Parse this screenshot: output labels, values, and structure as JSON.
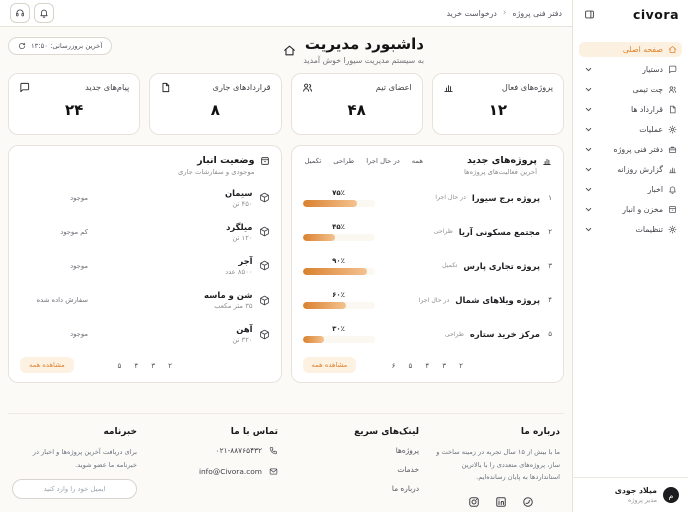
{
  "brand": {
    "logo": "civora"
  },
  "sidebar": {
    "items": [
      {
        "label": "صفحه اصلی",
        "icon": "home-icon",
        "active": true
      },
      {
        "label": "دستیار",
        "icon": "chat-icon"
      },
      {
        "label": "چت تیمی",
        "icon": "users-icon"
      },
      {
        "label": "قرارداد ها",
        "icon": "document-icon"
      },
      {
        "label": "عملیات",
        "icon": "gear-icon"
      },
      {
        "label": "دفتر فنی پروژه",
        "icon": "briefcase-icon"
      },
      {
        "label": "گزارش روزانه",
        "icon": "bar-chart-icon"
      },
      {
        "label": "اخبار",
        "icon": "bell-icon"
      },
      {
        "label": "مخزن و انبار",
        "icon": "box-icon"
      },
      {
        "label": "تنظیمات",
        "icon": "gear-icon"
      }
    ],
    "user": {
      "name": "میلاد جودی",
      "role": "مدیر پروژه",
      "avatar_letter": "م"
    }
  },
  "topbar": {
    "breadcrumb": {
      "first": "دفتر فنی پروژه",
      "separator": "‹",
      "second": "درخواست خرید"
    }
  },
  "header": {
    "title": "داشبورد مدیریت",
    "subtitle": "به سیستم مدیریت سیورا خوش آمدید",
    "last_update": "آخرین بروزرسانی: ۱۳:۵۰"
  },
  "stats": [
    {
      "label": "پروژه‌های فعال",
      "value": "۱۲",
      "icon": "bar-chart-icon"
    },
    {
      "label": "اعضای تیم",
      "value": "۴۸",
      "icon": "users-icon"
    },
    {
      "label": "قراردادهای جاری",
      "value": "۸",
      "icon": "document-icon"
    },
    {
      "label": "پیام‌های جدید",
      "value": "۲۴",
      "icon": "chat-icon"
    }
  ],
  "projects_panel": {
    "title": "پروژه‌های جدید",
    "subtitle": "آخرین فعالیت‌های پروژه‌ها",
    "tabs": [
      "همه",
      "در حال اجرا",
      "طراحی",
      "تکمیل"
    ],
    "rows": [
      {
        "num": "۱",
        "name": "پروژه برج سیورا",
        "status": "در حال اجرا",
        "percent_label": "۷۵٪",
        "percent": 75
      },
      {
        "num": "۲",
        "name": "مجتمع مسکونی آریا",
        "status": "طراحی",
        "percent_label": "۴۵٪",
        "percent": 45
      },
      {
        "num": "۳",
        "name": "پروژه تجاری پارس",
        "status": "تکمیل",
        "percent_label": "۹۰٪",
        "percent": 90
      },
      {
        "num": "۴",
        "name": "پروژه ویلاهای شمال",
        "status": "در حال اجرا",
        "percent_label": "۶۰٪",
        "percent": 60
      },
      {
        "num": "۵",
        "name": "مرکز خرید ستاره",
        "status": "طراحی",
        "percent_label": "۳۰٪",
        "percent": 30
      }
    ],
    "pagination": [
      "۲",
      "۳",
      "۴",
      "۵",
      "۶"
    ],
    "view_all": "مشاهده همه"
  },
  "inventory_panel": {
    "title": "وضعیت انبار",
    "subtitle": "موجودی و سفارشات جاری",
    "rows": [
      {
        "name": "سیمان",
        "qty": "۴۵۰ تن",
        "status": "موجود"
      },
      {
        "name": "میلگرد",
        "qty": "۱۲۰ تن",
        "status": "کم موجود"
      },
      {
        "name": "آجر",
        "qty": "۸۵۰۰ عدد",
        "status": "موجود"
      },
      {
        "name": "شن و ماسه",
        "qty": "۳۵ متر مکعب",
        "status": "سفارش داده شده"
      },
      {
        "name": "آهن",
        "qty": "۳۲۰ تن",
        "status": "موجود"
      }
    ],
    "pagination": [
      "۲",
      "۳",
      "۴",
      "۵"
    ],
    "view_all": "مشاهده همه"
  },
  "footer": {
    "about": {
      "title": "درباره ما",
      "text": "ما با بیش از ۱۵ سال تجربه در زمینه ساخت و ساز، پروژه‌های متعددی را با بالاترین استانداردها به پایان رسانده‌ایم.",
      "social": [
        "instagram-icon",
        "linkedin-icon",
        "twitter-icon"
      ]
    },
    "quick_links": {
      "title": "لینک‌های سریع",
      "links": [
        "پروژه‌ها",
        "خدمات",
        "درباره ما"
      ]
    },
    "contact": {
      "title": "تماس با ما",
      "phone": "۰۲۱-۸۸۷۶۵۴۳۲",
      "email": "info@Civora.com"
    },
    "newsletter": {
      "title": "خبرنامه",
      "text": "برای دریافت آخرین پروژه‌ها و اخبار در خبرنامه ما عضو شوید.",
      "input_placeholder": "ایمیل خود را وارد کنید"
    }
  },
  "colors": {
    "accent": "#e0832c",
    "accent_light": "#fcf1e1"
  }
}
